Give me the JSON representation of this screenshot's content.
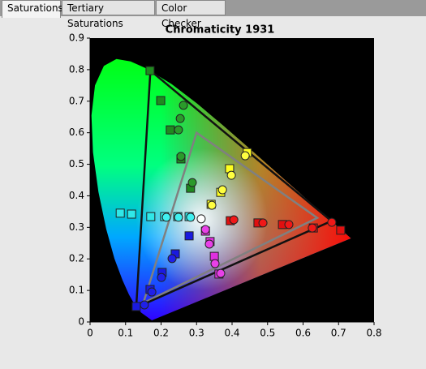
{
  "tabs": [
    "Saturations",
    "Tertiary Saturations",
    "Color Checker"
  ],
  "chart_data": {
    "type": "scatter",
    "title": "Chromaticity 1931",
    "xlim": [
      0,
      0.8
    ],
    "ylim": [
      0,
      0.9
    ],
    "xticks": [
      0,
      0.1,
      0.2,
      0.3,
      0.4,
      0.5,
      0.6,
      0.7,
      0.8
    ],
    "yticks": [
      0,
      0.1,
      0.2,
      0.3,
      0.4,
      0.5,
      0.6,
      0.7,
      0.8,
      0.9
    ],
    "background": "#000000",
    "locus": {
      "x": [
        0.1741,
        0.144,
        0.1241,
        0.1096,
        0.0913,
        0.0687,
        0.0454,
        0.0235,
        0.0082,
        0.0039,
        0.0139,
        0.0389,
        0.0743,
        0.1142,
        0.1547,
        0.2296,
        0.3016,
        0.3731,
        0.4441,
        0.5125,
        0.627,
        0.6915,
        0.7347
      ],
      "y": [
        0.005,
        0.0297,
        0.0578,
        0.0868,
        0.1327,
        0.2007,
        0.295,
        0.4127,
        0.5384,
        0.6548,
        0.7502,
        0.812,
        0.8338,
        0.8262,
        0.8059,
        0.7543,
        0.6923,
        0.6245,
        0.5547,
        0.4866,
        0.3725,
        0.3083,
        0.2653
      ]
    },
    "gamuts": [
      {
        "color": "#808080",
        "x": [
          0.64,
          0.3,
          0.15
        ],
        "y": [
          0.33,
          0.6,
          0.06
        ]
      },
      {
        "color": "#111111",
        "x": [
          0.17,
          0.68,
          0.13
        ],
        "y": [
          0.797,
          0.32,
          0.046
        ]
      }
    ],
    "groups": [
      {
        "marker": "square",
        "color": "#1f8a1f",
        "x": [
          0.169,
          0.199,
          0.226,
          0.256,
          0.283
        ],
        "y": [
          0.797,
          0.702,
          0.609,
          0.517,
          0.424
        ]
      },
      {
        "marker": "circle",
        "color": "#2a9a2a",
        "x": [
          0.263,
          0.254,
          0.249,
          0.256,
          0.288
        ],
        "y": [
          0.687,
          0.645,
          0.609,
          0.525,
          0.442
        ]
      },
      {
        "marker": "square",
        "color": "#ffff20",
        "x": [
          0.443,
          0.393,
          0.368,
          0.341
        ],
        "y": [
          0.537,
          0.486,
          0.411,
          0.373
        ]
      },
      {
        "marker": "circle",
        "color": "#ffff40",
        "x": [
          0.437,
          0.398,
          0.373,
          0.343
        ],
        "y": [
          0.527,
          0.465,
          0.419,
          0.37
        ]
      },
      {
        "marker": "square",
        "color": "#30e8e8",
        "x": [
          0.085,
          0.117,
          0.171,
          0.21,
          0.247,
          0.279
        ],
        "y": [
          0.345,
          0.342,
          0.334,
          0.334,
          0.334,
          0.334
        ]
      },
      {
        "marker": "circle",
        "color": "#40f0f0",
        "x": [
          0.215,
          0.249,
          0.283
        ],
        "y": [
          0.332,
          0.332,
          0.332
        ]
      },
      {
        "marker": "circle",
        "color": "#ffffff",
        "x": [
          0.313
        ],
        "y": [
          0.327
        ]
      },
      {
        "marker": "square",
        "color": "#1a1ae0",
        "x": [
          0.279,
          0.24,
          0.203,
          0.169,
          0.13
        ],
        "y": [
          0.273,
          0.216,
          0.157,
          0.103,
          0.049
        ]
      },
      {
        "marker": "circle",
        "color": "#2020e8",
        "x": [
          0.231,
          0.201,
          0.174,
          0.153
        ],
        "y": [
          0.201,
          0.141,
          0.095,
          0.054
        ]
      },
      {
        "marker": "square",
        "color": "#e030e0",
        "x": [
          0.325,
          0.338,
          0.35,
          0.363
        ],
        "y": [
          0.288,
          0.255,
          0.208,
          0.152
        ]
      },
      {
        "marker": "circle",
        "color": "#e840e8",
        "x": [
          0.325,
          0.336,
          0.352,
          0.368
        ],
        "y": [
          0.293,
          0.247,
          0.185,
          0.154
        ]
      },
      {
        "marker": "square",
        "color": "#e01010",
        "x": [
          0.706,
          0.629,
          0.542,
          0.473,
          0.395
        ],
        "y": [
          0.291,
          0.298,
          0.309,
          0.314,
          0.321
        ]
      },
      {
        "marker": "circle",
        "color": "#f01818",
        "x": [
          0.681,
          0.626,
          0.56,
          0.487,
          0.405
        ],
        "y": [
          0.316,
          0.298,
          0.309,
          0.314,
          0.324
        ]
      }
    ]
  }
}
